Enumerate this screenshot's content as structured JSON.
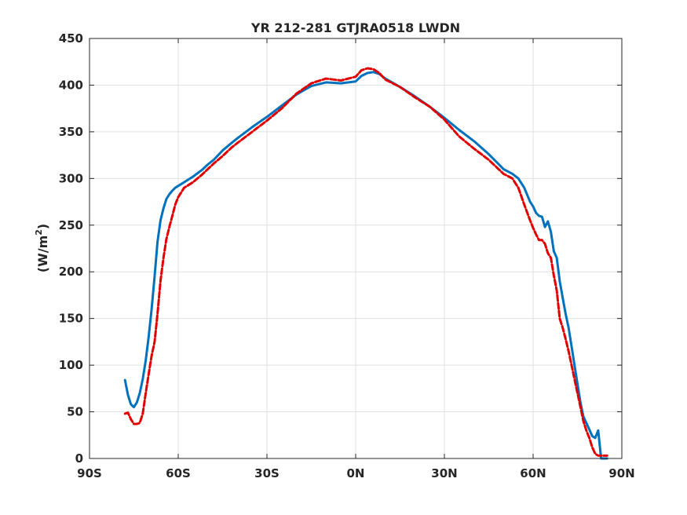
{
  "chart_data": {
    "type": "line",
    "title": "YR 212-281 GTJRA0518 LWDN",
    "xlabel": "",
    "ylabel_base": "(W/m",
    "ylabel_sup": "2",
    "ylabel_end": ")",
    "xlim": [
      -90,
      90
    ],
    "ylim": [
      0,
      450
    ],
    "grid": true,
    "xticks": [
      -90,
      -60,
      -30,
      0,
      30,
      60,
      90
    ],
    "xtick_labels": [
      "90S",
      "60S",
      "30S",
      "0N",
      "30N",
      "60N",
      "90N"
    ],
    "yticks": [
      0,
      50,
      100,
      150,
      200,
      250,
      300,
      350,
      400,
      450
    ],
    "ytick_labels": [
      "0",
      "50",
      "100",
      "150",
      "200",
      "250",
      "300",
      "350",
      "400",
      "450"
    ],
    "series": [
      {
        "style": "solid",
        "color": "#0072BD",
        "x": [
          -78,
          -77,
          -76,
          -75,
          -74,
          -73,
          -72,
          -71,
          -70,
          -69,
          -68,
          -67,
          -66,
          -65,
          -64,
          -63,
          -62,
          -61,
          -60,
          -58,
          -55,
          -52,
          -50,
          -48,
          -45,
          -42,
          -40,
          -35,
          -30,
          -25,
          -20,
          -15,
          -10,
          -5,
          0,
          2,
          4,
          6,
          8,
          10,
          15,
          20,
          25,
          30,
          35,
          40,
          45,
          50,
          53,
          55,
          57,
          59,
          60,
          61,
          62,
          63,
          64,
          65,
          66,
          67,
          68,
          69,
          70,
          71,
          72,
          73,
          74,
          75,
          76,
          77,
          78,
          79,
          80,
          81,
          82,
          83,
          84,
          85,
          86
        ],
        "y": [
          84,
          68,
          58,
          55,
          60,
          70,
          85,
          105,
          130,
          160,
          195,
          232,
          255,
          268,
          278,
          283,
          287,
          290,
          292,
          296,
          302,
          309,
          315,
          320,
          330,
          338,
          343,
          355,
          366,
          378,
          390,
          399,
          403,
          402,
          404,
          410,
          413,
          414,
          412,
          407,
          398,
          388,
          377,
          365,
          352,
          340,
          326,
          310,
          305,
          300,
          290,
          275,
          270,
          263,
          260,
          259,
          248,
          254,
          243,
          222,
          215,
          190,
          172,
          155,
          140,
          120,
          100,
          80,
          60,
          45,
          38,
          31,
          24,
          22,
          30,
          0,
          0,
          0,
          0
        ]
      },
      {
        "style": "dashed",
        "color": "#E00000",
        "x": [
          -78,
          -77,
          -76,
          -75,
          -74,
          -73,
          -72,
          -71,
          -70,
          -69,
          -68,
          -67,
          -66,
          -65,
          -64,
          -63,
          -62,
          -61,
          -60,
          -58,
          -55,
          -52,
          -50,
          -48,
          -45,
          -42,
          -40,
          -35,
          -30,
          -25,
          -20,
          -15,
          -10,
          -5,
          0,
          2,
          4,
          6,
          8,
          10,
          15,
          20,
          25,
          30,
          35,
          40,
          45,
          50,
          53,
          55,
          57,
          59,
          60,
          61,
          62,
          63,
          64,
          65,
          66,
          67,
          68,
          69,
          70,
          71,
          72,
          73,
          74,
          75,
          76,
          77,
          78,
          79,
          80,
          81,
          82,
          83,
          84,
          85,
          86
        ],
        "y": [
          48,
          49,
          42,
          37,
          37,
          38,
          48,
          70,
          90,
          110,
          125,
          155,
          190,
          215,
          235,
          248,
          260,
          272,
          280,
          290,
          296,
          304,
          310,
          316,
          324,
          333,
          338,
          350,
          362,
          375,
          391,
          402,
          407,
          405,
          409,
          416,
          418,
          417,
          413,
          406,
          398,
          387,
          377,
          363,
          345,
          332,
          320,
          305,
          300,
          290,
          272,
          255,
          247,
          240,
          234,
          234,
          230,
          220,
          215,
          196,
          180,
          150,
          140,
          128,
          115,
          100,
          85,
          70,
          55,
          40,
          30,
          22,
          12,
          5,
          3,
          3,
          3,
          3,
          3
        ]
      }
    ]
  }
}
